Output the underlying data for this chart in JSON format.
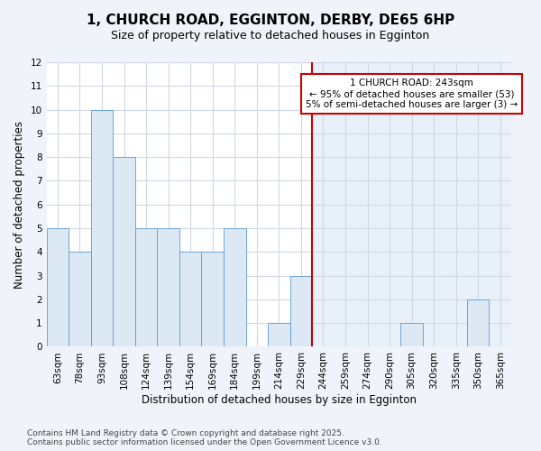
{
  "title": "1, CHURCH ROAD, EGGINTON, DERBY, DE65 6HP",
  "subtitle": "Size of property relative to detached houses in Egginton",
  "xlabel": "Distribution of detached houses by size in Egginton",
  "ylabel": "Number of detached properties",
  "categories": [
    "63sqm",
    "78sqm",
    "93sqm",
    "108sqm",
    "124sqm",
    "139sqm",
    "154sqm",
    "169sqm",
    "184sqm",
    "199sqm",
    "214sqm",
    "229sqm",
    "244sqm",
    "259sqm",
    "274sqm",
    "290sqm",
    "305sqm",
    "320sqm",
    "335sqm",
    "350sqm",
    "365sqm"
  ],
  "values": [
    5,
    4,
    10,
    8,
    5,
    5,
    4,
    4,
    5,
    0,
    1,
    3,
    0,
    0,
    0,
    0,
    1,
    0,
    0,
    2,
    0
  ],
  "bar_color_left": "#dce9f5",
  "bar_color_right": "#dce9f5",
  "bar_edgecolor": "#5b9bd5",
  "vline_x_index": 12,
  "vline_color": "#cc0000",
  "annotation_text": "1 CHURCH ROAD: 243sqm\n← 95% of detached houses are smaller (53)\n5% of semi-detached houses are larger (3) →",
  "annotation_box_color": "#cc0000",
  "ylim": [
    0,
    12
  ],
  "yticks": [
    0,
    1,
    2,
    3,
    4,
    5,
    6,
    7,
    8,
    9,
    10,
    11,
    12
  ],
  "bg_left": "#ffffff",
  "bg_right": "#e8f0fa",
  "grid_color": "#d0d8e4",
  "title_fontsize": 11,
  "subtitle_fontsize": 9,
  "axis_label_fontsize": 8.5,
  "tick_fontsize": 7.5,
  "annotation_fontsize": 7.5,
  "footer_fontsize": 6.5,
  "footer": "Contains HM Land Registry data © Crown copyright and database right 2025.\nContains public sector information licensed under the Open Government Licence v3.0."
}
